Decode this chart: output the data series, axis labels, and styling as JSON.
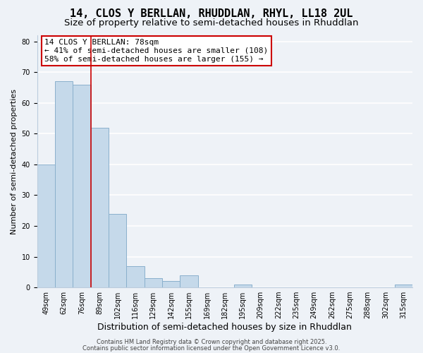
{
  "title": "14, CLOS Y BERLLAN, RHUDDLAN, RHYL, LL18 2UL",
  "subtitle": "Size of property relative to semi-detached houses in Rhuddlan",
  "xlabel": "Distribution of semi-detached houses by size in Rhuddlan",
  "ylabel": "Number of semi-detached properties",
  "categories": [
    "49sqm",
    "62sqm",
    "76sqm",
    "89sqm",
    "102sqm",
    "116sqm",
    "129sqm",
    "142sqm",
    "155sqm",
    "169sqm",
    "182sqm",
    "195sqm",
    "209sqm",
    "222sqm",
    "235sqm",
    "249sqm",
    "262sqm",
    "275sqm",
    "288sqm",
    "302sqm",
    "315sqm"
  ],
  "values": [
    40,
    67,
    66,
    52,
    24,
    7,
    3,
    2,
    4,
    0,
    0,
    1,
    0,
    0,
    0,
    0,
    0,
    0,
    0,
    0,
    1
  ],
  "bar_color": "#c5d9ea",
  "bar_edge_color": "#8ab0cc",
  "highlight_line_color": "#cc0000",
  "annotation_line1": "14 CLOS Y BERLLAN: 78sqm",
  "annotation_line2": "← 41% of semi-detached houses are smaller (108)",
  "annotation_line3": "58% of semi-detached houses are larger (155) →",
  "annotation_box_edge": "#cc0000",
  "ylim": [
    0,
    82
  ],
  "yticks": [
    0,
    10,
    20,
    30,
    40,
    50,
    60,
    70,
    80
  ],
  "grid_color": "#dde8f0",
  "background_color": "#eef2f7",
  "plot_bg_color": "#eef2f7",
  "footer_line1": "Contains HM Land Registry data © Crown copyright and database right 2025.",
  "footer_line2": "Contains public sector information licensed under the Open Government Licence v3.0.",
  "title_fontsize": 11,
  "subtitle_fontsize": 9.5,
  "xlabel_fontsize": 9,
  "ylabel_fontsize": 8,
  "tick_fontsize": 7,
  "annotation_fontsize": 8,
  "footer_fontsize": 6
}
